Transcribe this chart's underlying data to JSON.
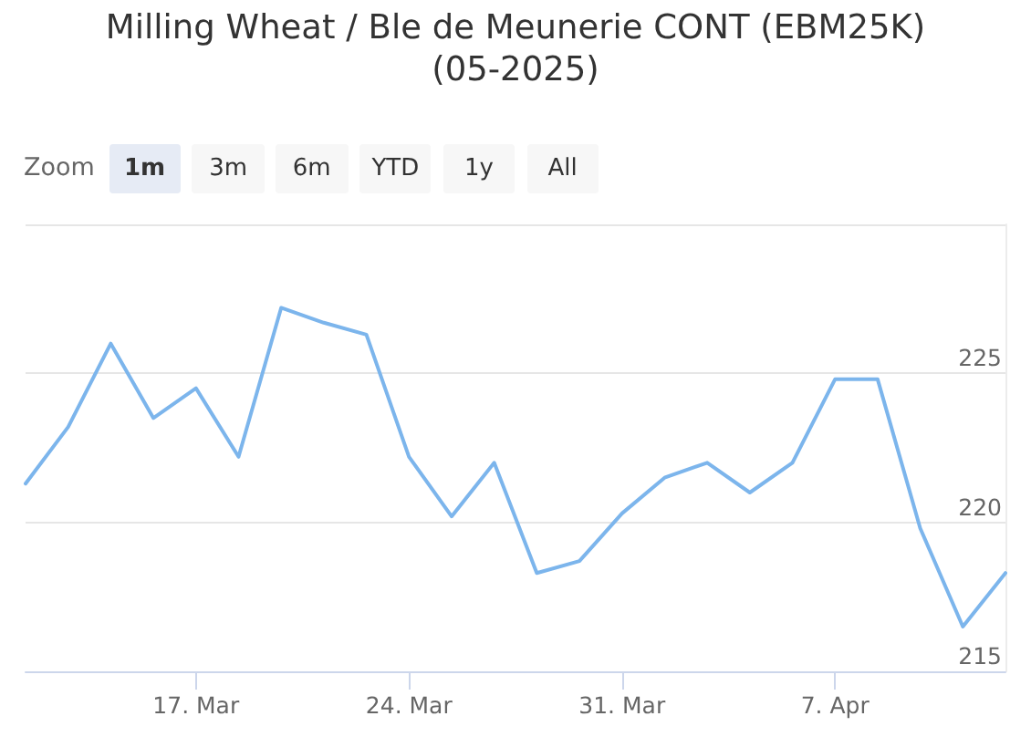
{
  "chart_data": {
    "type": "line",
    "title": "Milling Wheat / Ble de Meunerie CONT (EBM25K) (05-2025)",
    "annotations": [
      "Zoom",
      "1m",
      "3m",
      "6m",
      "YTD",
      "1y",
      "All"
    ],
    "categories": [
      null,
      null,
      null,
      null,
      "17. Mar",
      null,
      null,
      null,
      null,
      "24. Mar",
      null,
      null,
      null,
      null,
      "31. Mar",
      null,
      null,
      null,
      null,
      "7. Apr",
      null,
      null,
      null,
      null
    ],
    "series": [
      {
        "color": "#7cb5ec",
        "values": [
          221.3,
          223.2,
          226.0,
          223.5,
          224.5,
          222.2,
          227.2,
          226.7,
          226.3,
          222.2,
          220.2,
          222.0,
          218.3,
          218.7,
          220.3,
          221.5,
          222.0,
          221.0,
          222.0,
          224.8,
          224.8,
          219.8,
          216.5,
          218.3
        ]
      }
    ],
    "ylim": [
      215,
      230
    ],
    "yticks": [
      215,
      220,
      225,
      {
        "value": 230,
        "label": null
      }
    ],
    "grid": "y",
    "marker": "none",
    "line_style": "solid"
  }
}
